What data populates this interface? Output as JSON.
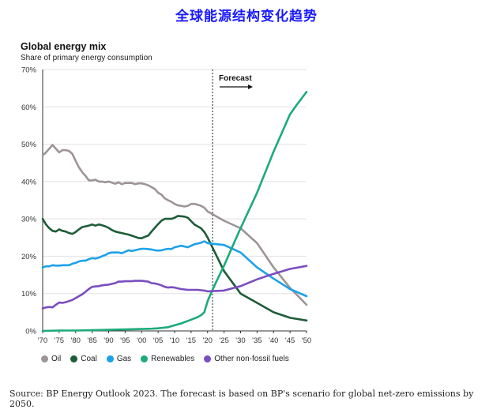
{
  "page": {
    "title": "全球能源结构变化趋势",
    "source": "Source: BP Energy Outlook 2023. The forecast is based on BP's scenario for global net-zero emissions by 2050."
  },
  "chart_data": {
    "type": "line",
    "title": "Global energy mix",
    "subtitle": "Share of primary energy consumption",
    "xlabel": "",
    "ylabel": "",
    "xlim": [
      1970,
      2050
    ],
    "ylim": [
      0,
      70
    ],
    "x_ticks": [
      1970,
      1975,
      1980,
      1985,
      1990,
      1995,
      2000,
      2005,
      2010,
      2015,
      2020,
      2025,
      2030,
      2035,
      2040,
      2045,
      2050
    ],
    "x_tick_labels": [
      "'70",
      "'75",
      "'80",
      "'85",
      "'90",
      "'95",
      "'00",
      "'05",
      "'10",
      "'15",
      "'20",
      "'25",
      "'30",
      "'35",
      "'40",
      "'45",
      "'50"
    ],
    "y_ticks": [
      0,
      10,
      20,
      30,
      40,
      50,
      60,
      70
    ],
    "y_tick_labels": [
      "0%",
      "10%",
      "20%",
      "30%",
      "40%",
      "50%",
      "60%",
      "70%"
    ],
    "forecast": {
      "year": 2021.5,
      "label": "Forecast"
    },
    "series": [
      {
        "name": "Oil",
        "color": "#9d9497",
        "x": [
          1970,
          1971,
          1972,
          1973,
          1974,
          1975,
          1976,
          1977,
          1978,
          1979,
          1980,
          1981,
          1982,
          1983,
          1984,
          1985,
          1986,
          1987,
          1988,
          1989,
          1990,
          1991,
          1992,
          1993,
          1994,
          1995,
          1996,
          1997,
          1998,
          1999,
          2000,
          2001,
          2002,
          2003,
          2004,
          2005,
          2006,
          2007,
          2008,
          2009,
          2010,
          2011,
          2012,
          2013,
          2014,
          2015,
          2016,
          2017,
          2018,
          2019,
          2020,
          2025,
          2030,
          2035,
          2040,
          2045,
          2050
        ],
        "values": [
          47,
          47.8,
          48.8,
          49.8,
          48.8,
          47.8,
          48.4,
          48.4,
          48.2,
          47.4,
          45.5,
          43.8,
          42.5,
          41.5,
          40.3,
          40.3,
          40.5,
          40.0,
          40.0,
          39.8,
          40.0,
          39.7,
          39.4,
          39.8,
          39.3,
          39.6,
          39.6,
          39.6,
          39.3,
          39.5,
          39.5,
          39.3,
          39.0,
          38.5,
          38.0,
          37.0,
          36.5,
          35.5,
          35.0,
          34.6,
          34.0,
          33.6,
          33.5,
          33.3,
          33.5,
          34.0,
          34.0,
          33.8,
          33.5,
          33.0,
          32.0,
          29.5,
          27.5,
          23.5,
          17.0,
          11.5,
          7.0
        ]
      },
      {
        "name": "Coal",
        "color": "#1e5c38",
        "x": [
          1970,
          1971,
          1972,
          1973,
          1974,
          1975,
          1976,
          1977,
          1978,
          1979,
          1980,
          1981,
          1982,
          1983,
          1984,
          1985,
          1986,
          1987,
          1988,
          1989,
          1990,
          1991,
          1992,
          1993,
          1994,
          1995,
          1996,
          1997,
          1998,
          1999,
          2000,
          2001,
          2002,
          2003,
          2004,
          2005,
          2006,
          2007,
          2008,
          2009,
          2010,
          2011,
          2012,
          2013,
          2014,
          2015,
          2016,
          2017,
          2018,
          2019,
          2020,
          2025,
          2030,
          2035,
          2040,
          2045,
          2050
        ],
        "values": [
          30,
          28.5,
          27.5,
          26.8,
          26.6,
          27.2,
          26.8,
          26.6,
          26.2,
          26.0,
          26.5,
          27.2,
          27.8,
          28.0,
          28.2,
          28.5,
          28.2,
          28.5,
          28.3,
          28.0,
          27.6,
          27.0,
          26.6,
          26.4,
          26.2,
          26.0,
          25.8,
          25.5,
          25.2,
          24.9,
          24.8,
          25.2,
          25.5,
          26.6,
          27.6,
          28.6,
          29.5,
          30.0,
          30.0,
          30.0,
          30.3,
          30.8,
          30.7,
          30.6,
          30.3,
          29.4,
          28.5,
          28.0,
          27.5,
          26.5,
          25.0,
          16.0,
          10.0,
          7.5,
          5.0,
          3.5,
          2.8
        ]
      },
      {
        "name": "Gas",
        "color": "#1da1e8",
        "x": [
          1970,
          1971,
          1972,
          1973,
          1974,
          1975,
          1976,
          1977,
          1978,
          1979,
          1980,
          1981,
          1982,
          1983,
          1984,
          1985,
          1986,
          1987,
          1988,
          1989,
          1990,
          1991,
          1992,
          1993,
          1994,
          1995,
          1996,
          1997,
          1998,
          1999,
          2000,
          2001,
          2002,
          2003,
          2004,
          2005,
          2006,
          2007,
          2008,
          2009,
          2010,
          2011,
          2012,
          2013,
          2014,
          2015,
          2016,
          2017,
          2018,
          2019,
          2020,
          2025,
          2030,
          2035,
          2040,
          2045,
          2050
        ],
        "values": [
          17.0,
          17.3,
          17.3,
          17.6,
          17.5,
          17.5,
          17.6,
          17.6,
          17.6,
          18.0,
          18.2,
          18.6,
          18.8,
          18.8,
          19.2,
          19.5,
          19.4,
          19.6,
          20.0,
          20.3,
          20.8,
          21.0,
          21.0,
          21.0,
          20.8,
          21.2,
          21.6,
          21.4,
          21.6,
          21.8,
          22.0,
          22.0,
          21.9,
          21.8,
          21.6,
          21.5,
          21.6,
          21.8,
          22.0,
          21.9,
          22.4,
          22.6,
          22.8,
          22.6,
          22.4,
          22.8,
          23.2,
          23.4,
          23.6,
          24.0,
          23.5,
          23.0,
          21.0,
          17.0,
          14.0,
          11.2,
          9.3
        ]
      },
      {
        "name": "Renewables",
        "color": "#1daa7a",
        "x": [
          1970,
          1975,
          1980,
          1985,
          1990,
          1995,
          2000,
          2003,
          2005,
          2008,
          2010,
          2012,
          2015,
          2017,
          2018,
          2019,
          2020,
          2021,
          2022,
          2025,
          2028,
          2030,
          2035,
          2040,
          2045,
          2047,
          2050
        ],
        "values": [
          0,
          0.1,
          0.1,
          0.2,
          0.3,
          0.4,
          0.5,
          0.6,
          0.7,
          1.0,
          1.5,
          2.0,
          3.0,
          3.7,
          4.2,
          5.0,
          8.0,
          10.0,
          12.0,
          17.5,
          23.5,
          27.5,
          37.0,
          48.0,
          58.0,
          60.5,
          64.0
        ]
      },
      {
        "name": "Other non-fossil fuels",
        "color": "#7a4dbf",
        "x": [
          1970,
          1971,
          1972,
          1973,
          1974,
          1975,
          1976,
          1977,
          1978,
          1979,
          1980,
          1981,
          1982,
          1983,
          1984,
          1985,
          1986,
          1987,
          1988,
          1989,
          1990,
          1991,
          1992,
          1993,
          1994,
          1995,
          1996,
          1997,
          1998,
          1999,
          2000,
          2001,
          2002,
          2003,
          2004,
          2005,
          2006,
          2007,
          2008,
          2009,
          2010,
          2011,
          2012,
          2013,
          2014,
          2015,
          2016,
          2017,
          2018,
          2019,
          2020,
          2025,
          2030,
          2035,
          2040,
          2045,
          2050
        ],
        "values": [
          6.0,
          6.3,
          6.4,
          6.3,
          7.0,
          7.6,
          7.5,
          7.7,
          8.0,
          8.3,
          8.8,
          9.3,
          9.8,
          10.5,
          11.2,
          11.8,
          11.9,
          12.0,
          12.2,
          12.3,
          12.4,
          12.6,
          12.8,
          13.2,
          13.2,
          13.3,
          13.3,
          13.3,
          13.4,
          13.4,
          13.4,
          13.3,
          13.2,
          12.8,
          12.7,
          12.5,
          12.2,
          11.8,
          11.6,
          11.7,
          11.6,
          11.4,
          11.2,
          11.1,
          11.0,
          11.0,
          11.0,
          11.0,
          10.9,
          10.8,
          10.6,
          10.8,
          12.0,
          13.8,
          15.3,
          16.6,
          17.4
        ]
      }
    ]
  }
}
